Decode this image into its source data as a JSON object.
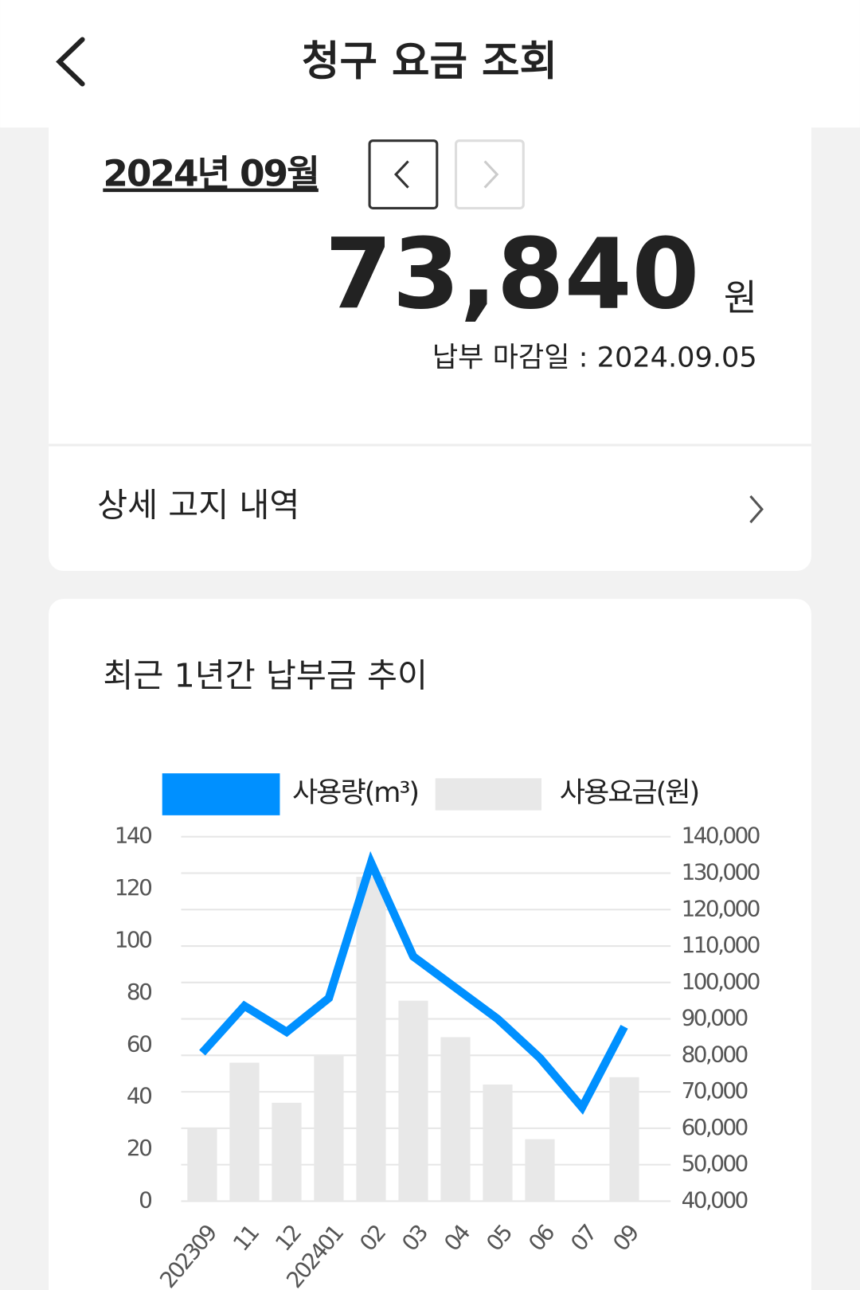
{
  "header": {
    "title": "청구 요금 조회"
  },
  "bill": {
    "month": "2024년 09월",
    "amount": "73,840",
    "unit": "원",
    "due": "납부 마감일 : 2024.09.05"
  },
  "detail_link": "상세 고지 내역",
  "chart_data": {
    "type": "combo",
    "title": "최근 1년간 납부금 추이",
    "categories": [
      "202309",
      "11",
      "12",
      "202401",
      "02",
      "03",
      "04",
      "05",
      "06",
      "07",
      "09"
    ],
    "series": [
      {
        "name": "사용량(m³)",
        "type": "line",
        "color": "#0090ff",
        "values": [
          57,
          75,
          65,
          78,
          130,
          94,
          82,
          70,
          55,
          36,
          67
        ]
      },
      {
        "name": "사용요금(원)",
        "type": "bar",
        "axis": "y2",
        "color": "#e8e8e8",
        "values": [
          60000,
          78000,
          67000,
          80000,
          129000,
          95000,
          85000,
          72000,
          57000,
          null,
          74000
        ]
      }
    ],
    "ylim": [
      0,
      140
    ],
    "yticks": [
      0,
      20,
      40,
      60,
      80,
      100,
      120,
      140
    ],
    "y2lim": [
      40000,
      140000
    ],
    "y2ticks": [
      {
        "value": 40000,
        "label": "40,000"
      },
      {
        "value": 50000,
        "label": "50,000"
      },
      {
        "value": 60000,
        "label": "60,000"
      },
      {
        "value": 70000,
        "label": "70,000"
      },
      {
        "value": 80000,
        "label": "80,000"
      },
      {
        "value": 90000,
        "label": "90,000"
      },
      {
        "value": 100000,
        "label": "100,000"
      },
      {
        "value": 110000,
        "label": "110,000"
      },
      {
        "value": 120000,
        "label": "120,000"
      },
      {
        "value": 130000,
        "label": "130,000"
      },
      {
        "value": 140000,
        "label": "140,000"
      }
    ],
    "grid": true
  }
}
